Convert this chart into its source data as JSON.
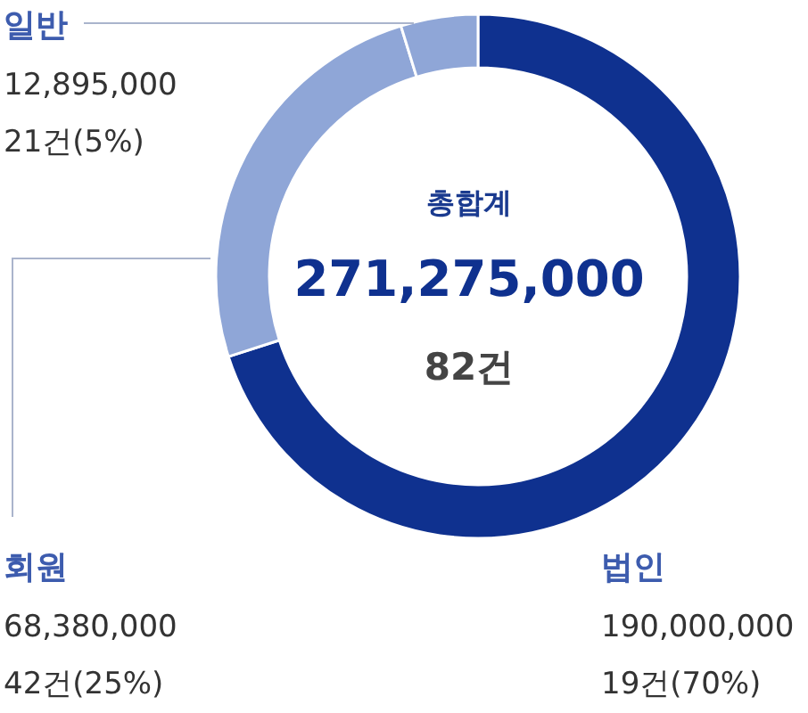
{
  "chart_data": {
    "type": "donut",
    "title": "총합계",
    "subtitle": "271,275,000",
    "categories": [
      "법인",
      "회원",
      "일반"
    ],
    "values": [
      190000000,
      68380000,
      12895000
    ],
    "colors": [
      "#0f318f",
      "#8fa6d7",
      "#8fa6d7"
    ],
    "value_labels": [
      "190,000,000",
      "68,380,000",
      "12,895,000"
    ],
    "annotations": [
      "82건",
      "19건(70%)",
      "42건(25%)",
      "21건(5%)"
    ]
  }
}
